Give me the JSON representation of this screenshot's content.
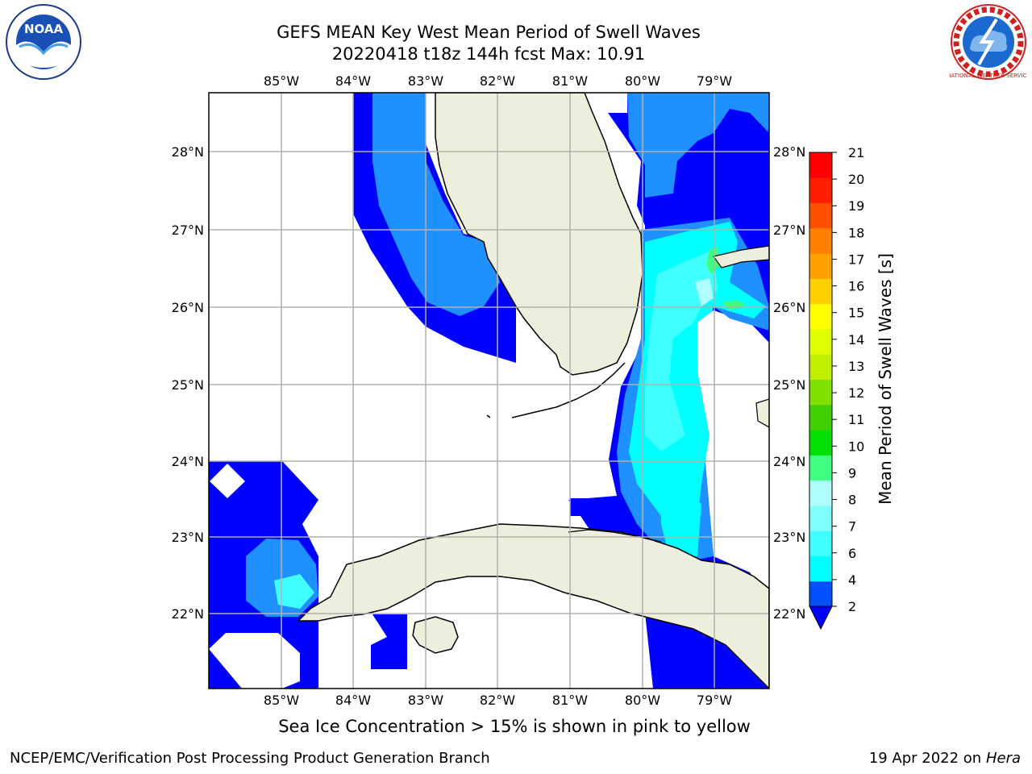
{
  "header": {
    "title_line1": "GEFS MEAN Key West Mean Period of Swell Waves",
    "title_line2": "20220418 t18z 144h fcst   Max: 10.91"
  },
  "logos": {
    "noaa_text": "NOAA",
    "nws_ring_text": "NATIONAL WEATHER SERVICE"
  },
  "map": {
    "lon_labels": [
      "85°W",
      "84°W",
      "83°W",
      "82°W",
      "81°W",
      "80°W",
      "79°W"
    ],
    "lat_labels": [
      "28°N",
      "27°N",
      "26°N",
      "25°N",
      "24°N",
      "23°N",
      "22°N"
    ]
  },
  "colorbar": {
    "title": "Mean Period of Swell Waves [s]",
    "ticks": [
      "2",
      "4",
      "6",
      "7",
      "8",
      "9",
      "10",
      "11",
      "12",
      "13",
      "14",
      "15",
      "16",
      "17",
      "18",
      "19",
      "20",
      "21"
    ],
    "colors": [
      "#0050ff",
      "#00ffff",
      "#40ffff",
      "#80ffff",
      "#b0ffff",
      "#40ff80",
      "#00e000",
      "#40d000",
      "#80e000",
      "#c0f000",
      "#e0ff00",
      "#ffff00",
      "#ffd000",
      "#ffa000",
      "#ff8000",
      "#ff5000",
      "#ff2000",
      "#ff0000"
    ],
    "under_color": "#0000ff"
  },
  "caption": "Sea Ice Concentration > 15% is shown in pink to yellow",
  "footer": {
    "left": "NCEP/EMC/Verification Post Processing Product Generation Branch",
    "right_prefix": "19 Apr 2022 on ",
    "right_host": "Hera"
  }
}
